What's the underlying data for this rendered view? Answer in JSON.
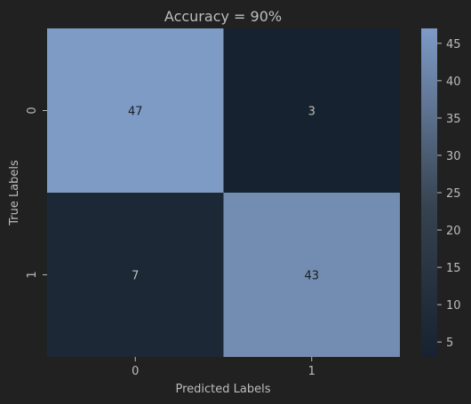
{
  "chart_data": {
    "type": "heatmap",
    "title": "Accuracy = 90%",
    "xlabel": "Predicted Labels",
    "ylabel": "True Labels",
    "x_categories": [
      "0",
      "1"
    ],
    "y_categories": [
      "0",
      "1"
    ],
    "values": [
      [
        47,
        3
      ],
      [
        7,
        43
      ]
    ],
    "annotations": [
      [
        "47",
        "3"
      ],
      [
        "7",
        "43"
      ]
    ],
    "colorbar": {
      "range": [
        3,
        47
      ],
      "ticks": [
        5,
        10,
        15,
        20,
        25,
        30,
        35,
        40,
        45
      ],
      "tick_labels": [
        "5",
        "10",
        "15",
        "20",
        "25",
        "30",
        "35",
        "40",
        "45"
      ]
    },
    "colors": {
      "background": "#212121",
      "text": "#bdbdbd",
      "annotation_text": "#1e1e1e",
      "cmap_low": "#172230",
      "cmap_mid": "#35424f",
      "cmap_high": "#7e9bc6"
    }
  }
}
